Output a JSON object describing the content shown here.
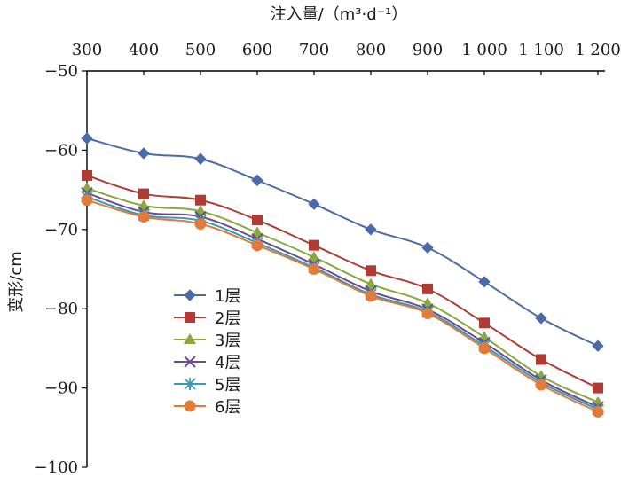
{
  "chart_data": {
    "type": "line",
    "title": "",
    "xlabel": "注入量/（m³·d⁻¹）",
    "ylabel": "变形/cm",
    "x_axis_position": "top",
    "categories": [
      300,
      400,
      500,
      600,
      700,
      800,
      900,
      1000,
      1100,
      1200
    ],
    "x_tick_labels": [
      "300",
      "400",
      "500",
      "600",
      "700",
      "800",
      "900",
      "1 000",
      "1 100",
      "1 200"
    ],
    "ylim": [
      -100,
      -50
    ],
    "y_ticks": [
      -50,
      -60,
      -70,
      -80,
      -90,
      -100
    ],
    "y_tick_labels": [
      "−50",
      "−60",
      "−70",
      "−80",
      "−90",
      "−100"
    ],
    "legend_position": "lower-left",
    "series": [
      {
        "name": "1层",
        "color": "#4a6ba8",
        "marker": "diamond",
        "values": [
          -58.5,
          -60.4,
          -61.1,
          -63.8,
          -66.8,
          -70.0,
          -72.3,
          -76.6,
          -81.2,
          -84.7
        ]
      },
      {
        "name": "2层",
        "color": "#b23a34",
        "marker": "square",
        "values": [
          -63.2,
          -65.5,
          -66.3,
          -68.8,
          -72.0,
          -75.2,
          -77.5,
          -81.8,
          -86.4,
          -90.0
        ]
      },
      {
        "name": "3层",
        "color": "#8aa83c",
        "marker": "triangle",
        "values": [
          -64.8,
          -67.0,
          -67.7,
          -70.4,
          -73.5,
          -76.9,
          -79.3,
          -83.6,
          -88.5,
          -91.8
        ]
      },
      {
        "name": "4层",
        "color": "#6a4c93",
        "marker": "x",
        "values": [
          -65.4,
          -67.8,
          -68.4,
          -71.2,
          -74.4,
          -77.8,
          -80.1,
          -84.3,
          -89.0,
          -92.4
        ]
      },
      {
        "name": "5层",
        "color": "#3a9ab5",
        "marker": "star",
        "values": [
          -65.9,
          -68.2,
          -68.9,
          -71.7,
          -74.8,
          -78.2,
          -80.4,
          -84.7,
          -89.3,
          -92.7
        ]
      },
      {
        "name": "6层",
        "color": "#e07b39",
        "marker": "circle",
        "values": [
          -66.3,
          -68.4,
          -69.3,
          -72.0,
          -75.0,
          -78.4,
          -80.6,
          -85.0,
          -89.6,
          -93.0
        ]
      }
    ]
  }
}
